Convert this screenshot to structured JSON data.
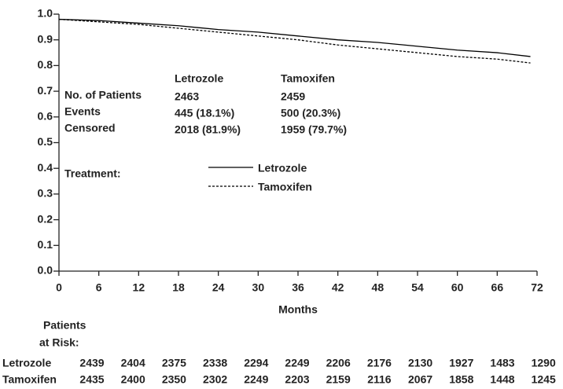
{
  "chart_data": {
    "type": "line",
    "xlabel": "Months",
    "x": [
      0,
      6,
      12,
      18,
      24,
      30,
      36,
      42,
      48,
      54,
      60,
      66,
      71
    ],
    "series": [
      {
        "name": "Letrozole",
        "color": "#000000",
        "dash": "solid",
        "values": [
          0.98,
          0.975,
          0.965,
          0.955,
          0.94,
          0.93,
          0.915,
          0.9,
          0.89,
          0.875,
          0.86,
          0.85,
          0.835
        ]
      },
      {
        "name": "Tamoxifen",
        "color": "#000000",
        "dash": "dashed",
        "values": [
          0.98,
          0.97,
          0.96,
          0.945,
          0.93,
          0.915,
          0.9,
          0.88,
          0.865,
          0.85,
          0.835,
          0.825,
          0.81
        ]
      }
    ],
    "xlim": [
      0,
      72
    ],
    "xticks": [
      0,
      6,
      12,
      18,
      24,
      30,
      36,
      42,
      48,
      54,
      60,
      66,
      72
    ],
    "ylim": [
      0,
      1
    ],
    "yticks": [
      {
        "value": 0,
        "label": "0.0"
      },
      0.1,
      0.2,
      0.3,
      0.4,
      0.5,
      0.6,
      0.7,
      0.8,
      0.9,
      {
        "value": 1,
        "label": "1.0"
      }
    ],
    "grid": false,
    "legend_title": "Treatment:",
    "summary_table": {
      "columns": [
        "Letrozole",
        "Tamoxifen"
      ],
      "rows": [
        {
          "label": "No. of Patients",
          "values": [
            "2463",
            "2459"
          ]
        },
        {
          "label": "Events",
          "values": [
            "445 (18.1%)",
            "500 (20.3%)"
          ]
        },
        {
          "label": "Censored",
          "values": [
            "2018 (81.9%)",
            "1959 (79.7%)"
          ]
        }
      ]
    },
    "risk_table": {
      "title": [
        "Patients",
        "at Risk:"
      ],
      "rows": [
        {
          "name": "Letrozole",
          "values": [
            "2439",
            "2404",
            "2375",
            "2338",
            "2294",
            "2249",
            "2206",
            "2176",
            "2130",
            "1927",
            "1483",
            "1290"
          ]
        },
        {
          "name": "Tamoxifen",
          "values": [
            "2435",
            "2400",
            "2350",
            "2302",
            "2249",
            "2203",
            "2159",
            "2116",
            "2067",
            "1858",
            "1448",
            "1245"
          ]
        }
      ]
    }
  }
}
